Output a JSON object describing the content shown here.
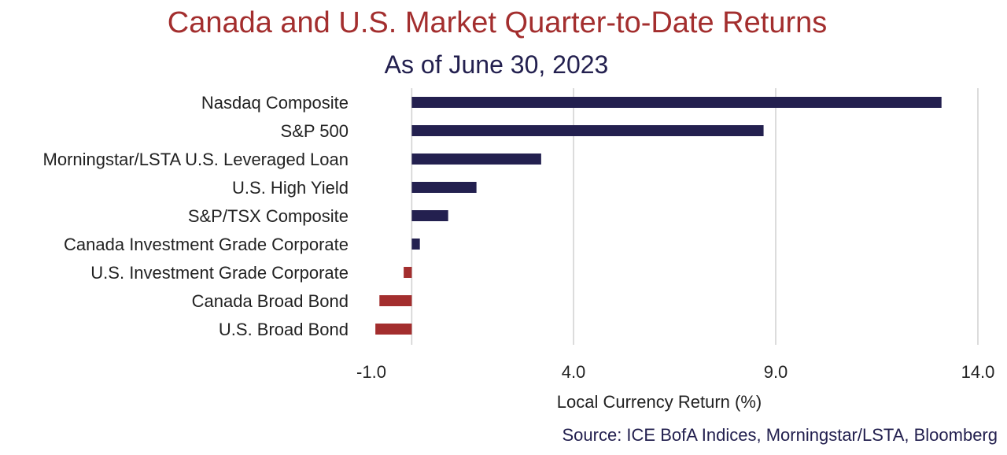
{
  "colors": {
    "positive": "#23204f",
    "negative": "#a32e2e",
    "grid": "#d0d0d0",
    "title": "#a32e2e",
    "subtitle": "#23204f"
  },
  "chart_data": {
    "type": "bar",
    "orientation": "horizontal",
    "title": "Canada and U.S. Market Quarter-to-Date Returns",
    "subtitle": "As of June 30, 2023",
    "xlabel": "Local Currency Return (%)",
    "ylabel": "",
    "xlim": [
      -1.0,
      14.0
    ],
    "xticks": [
      -1.0,
      4.0,
      9.0,
      14.0
    ],
    "xtick_labels": [
      "-1.0",
      "4.0",
      "9.0",
      "14.0"
    ],
    "grid": true,
    "categories": [
      "Nasdaq Composite",
      "S&P 500",
      "Morningstar/LSTA U.S. Leveraged Loan",
      "U.S. High Yield",
      "S&P/TSX Composite",
      "Canada Investment Grade Corporate",
      "U.S. Investment Grade Corporate",
      "Canada Broad Bond",
      "U.S. Broad Bond"
    ],
    "values": [
      13.1,
      8.7,
      3.2,
      1.6,
      0.9,
      0.2,
      -0.2,
      -0.8,
      -0.9
    ],
    "source": "Source: ICE BofA Indices, Morningstar/LSTA, Bloomberg"
  }
}
